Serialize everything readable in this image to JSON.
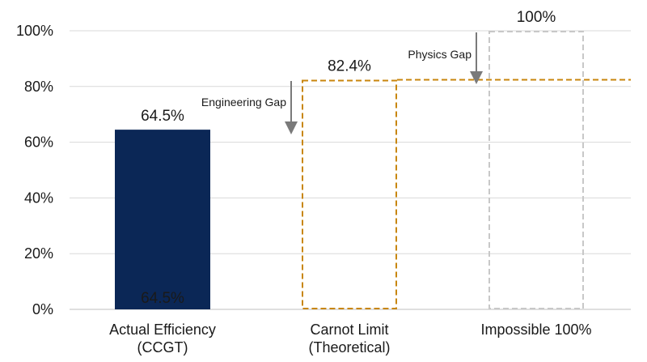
{
  "chart_data": {
    "type": "bar",
    "title": "",
    "xlabel": "",
    "ylabel": "",
    "ylim": [
      0,
      100
    ],
    "yticks": [
      0,
      20,
      40,
      60,
      80,
      100
    ],
    "ytick_format": "{v}%",
    "grid": true,
    "categories": [
      {
        "lines": [
          "Actual Efficiency",
          "(CCGT)"
        ]
      },
      {
        "lines": [
          "Carnot Limit",
          "(Theoretical)"
        ]
      },
      {
        "lines": [
          "Impossible 100%"
        ]
      }
    ],
    "values": [
      64.5,
      82.4,
      100
    ],
    "bars": [
      {
        "style": "solid",
        "color": "#0b2756",
        "top_label": "64.5%",
        "inner_label": "64.5%",
        "inner_label_color": "#ffffff"
      },
      {
        "style": "dashed",
        "color": "#c8860d",
        "top_label": "82.4%"
      },
      {
        "style": "dashed",
        "color": "#c8c8c8",
        "top_label": "100%",
        "top_label_color": "#b5b5b5"
      }
    ],
    "reference_line": {
      "value": 82.4,
      "color": "#c8860d",
      "style": "dashed"
    },
    "annotations": [
      {
        "text": "Engineering Gap",
        "arrow_color": "#7a7a7a"
      },
      {
        "text": "Physics Gap",
        "arrow_color": "#7a7a7a"
      }
    ],
    "colors": {
      "grid": "#d9d9d9",
      "axis": "#bfbfbf",
      "text": "#1a1a1a"
    }
  }
}
